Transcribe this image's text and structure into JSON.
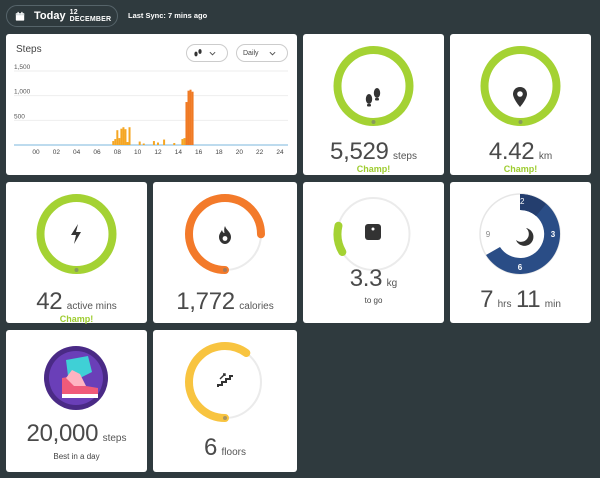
{
  "header": {
    "today_label": "Today",
    "date": "12 DECEMBER",
    "last_sync": "Last Sync: 7 mins ago"
  },
  "steps_chart": {
    "title": "Steps",
    "metric_dropdown_icon": "footsteps-icon",
    "period_dropdown": "Daily"
  },
  "chart_data": {
    "type": "bar",
    "title": "Steps",
    "ylim": [
      0,
      1600
    ],
    "yticks": [
      "1,500",
      "1,000",
      "500"
    ],
    "xticks": [
      "00",
      "02",
      "04",
      "06",
      "08",
      "10",
      "12",
      "14",
      "16",
      "18",
      "20",
      "22",
      "24"
    ],
    "x_unit": "hour",
    "bars": [
      {
        "x": 7.6,
        "value": 80,
        "color": "#f5a623"
      },
      {
        "x": 7.8,
        "value": 120,
        "color": "#f5a623"
      },
      {
        "x": 8.0,
        "value": 300,
        "color": "#f5a623"
      },
      {
        "x": 8.2,
        "value": 140,
        "color": "#f5a623"
      },
      {
        "x": 8.4,
        "value": 330,
        "color": "#f5a623"
      },
      {
        "x": 8.6,
        "value": 360,
        "color": "#f5a623"
      },
      {
        "x": 8.8,
        "value": 320,
        "color": "#f5a623"
      },
      {
        "x": 9.0,
        "value": 60,
        "color": "#f5a623"
      },
      {
        "x": 9.2,
        "value": 360,
        "color": "#f5a623"
      },
      {
        "x": 10.2,
        "value": 70,
        "color": "#f5a623"
      },
      {
        "x": 10.6,
        "value": 30,
        "color": "#f5a623"
      },
      {
        "x": 11.6,
        "value": 80,
        "color": "#f5a623"
      },
      {
        "x": 12.0,
        "value": 50,
        "color": "#f5a623"
      },
      {
        "x": 12.6,
        "value": 110,
        "color": "#f5a623"
      },
      {
        "x": 13.6,
        "value": 40,
        "color": "#f5a623"
      },
      {
        "x": 14.4,
        "value": 120,
        "color": "#f5a623"
      },
      {
        "x": 14.6,
        "value": 140,
        "color": "#f5a623"
      },
      {
        "x": 14.8,
        "value": 870,
        "color": "#f07a24"
      },
      {
        "x": 15.0,
        "value": 1100,
        "color": "#f07a24"
      },
      {
        "x": 15.2,
        "value": 1120,
        "color": "#f07a24"
      },
      {
        "x": 15.4,
        "value": 1080,
        "color": "#f07a24"
      }
    ]
  },
  "tiles": {
    "steps": {
      "value": "5,529",
      "unit": "steps",
      "badge": "Champ!",
      "icon": "footsteps-icon",
      "progress": 1.0,
      "color": "#a4d233"
    },
    "distance": {
      "value": "4.42",
      "unit": "km",
      "badge": "Champ!",
      "icon": "location-pin-icon",
      "progress": 1.0,
      "color": "#a4d233"
    },
    "active": {
      "value": "42",
      "unit": "active mins",
      "badge": "Champ!",
      "icon": "lightning-icon",
      "progress": 1.0,
      "color": "#a4d233"
    },
    "calories": {
      "value": "1,772",
      "unit": "calories",
      "icon": "flame-icon",
      "progress": 0.75,
      "color": "#f37a2a"
    },
    "weight": {
      "value": "3.3",
      "unit": "kg",
      "sub": "to go",
      "icon": "scale-icon",
      "progress": 0.12,
      "color": "#a4d233"
    },
    "sleep": {
      "hours": "7",
      "hours_unit": "hrs",
      "mins": "11",
      "mins_unit": "min",
      "icon": "moon-icon",
      "clock_labels": [
        "12",
        "3",
        "6",
        "9"
      ],
      "color": "#2a4d86"
    },
    "best": {
      "value": "20,000",
      "unit": "steps",
      "sub": "Best in a day",
      "icon": "sneaker-badge-icon"
    },
    "floors": {
      "value": "6",
      "unit": "floors",
      "icon": "stairs-icon",
      "progress": 0.6,
      "color": "#f8c440"
    }
  }
}
